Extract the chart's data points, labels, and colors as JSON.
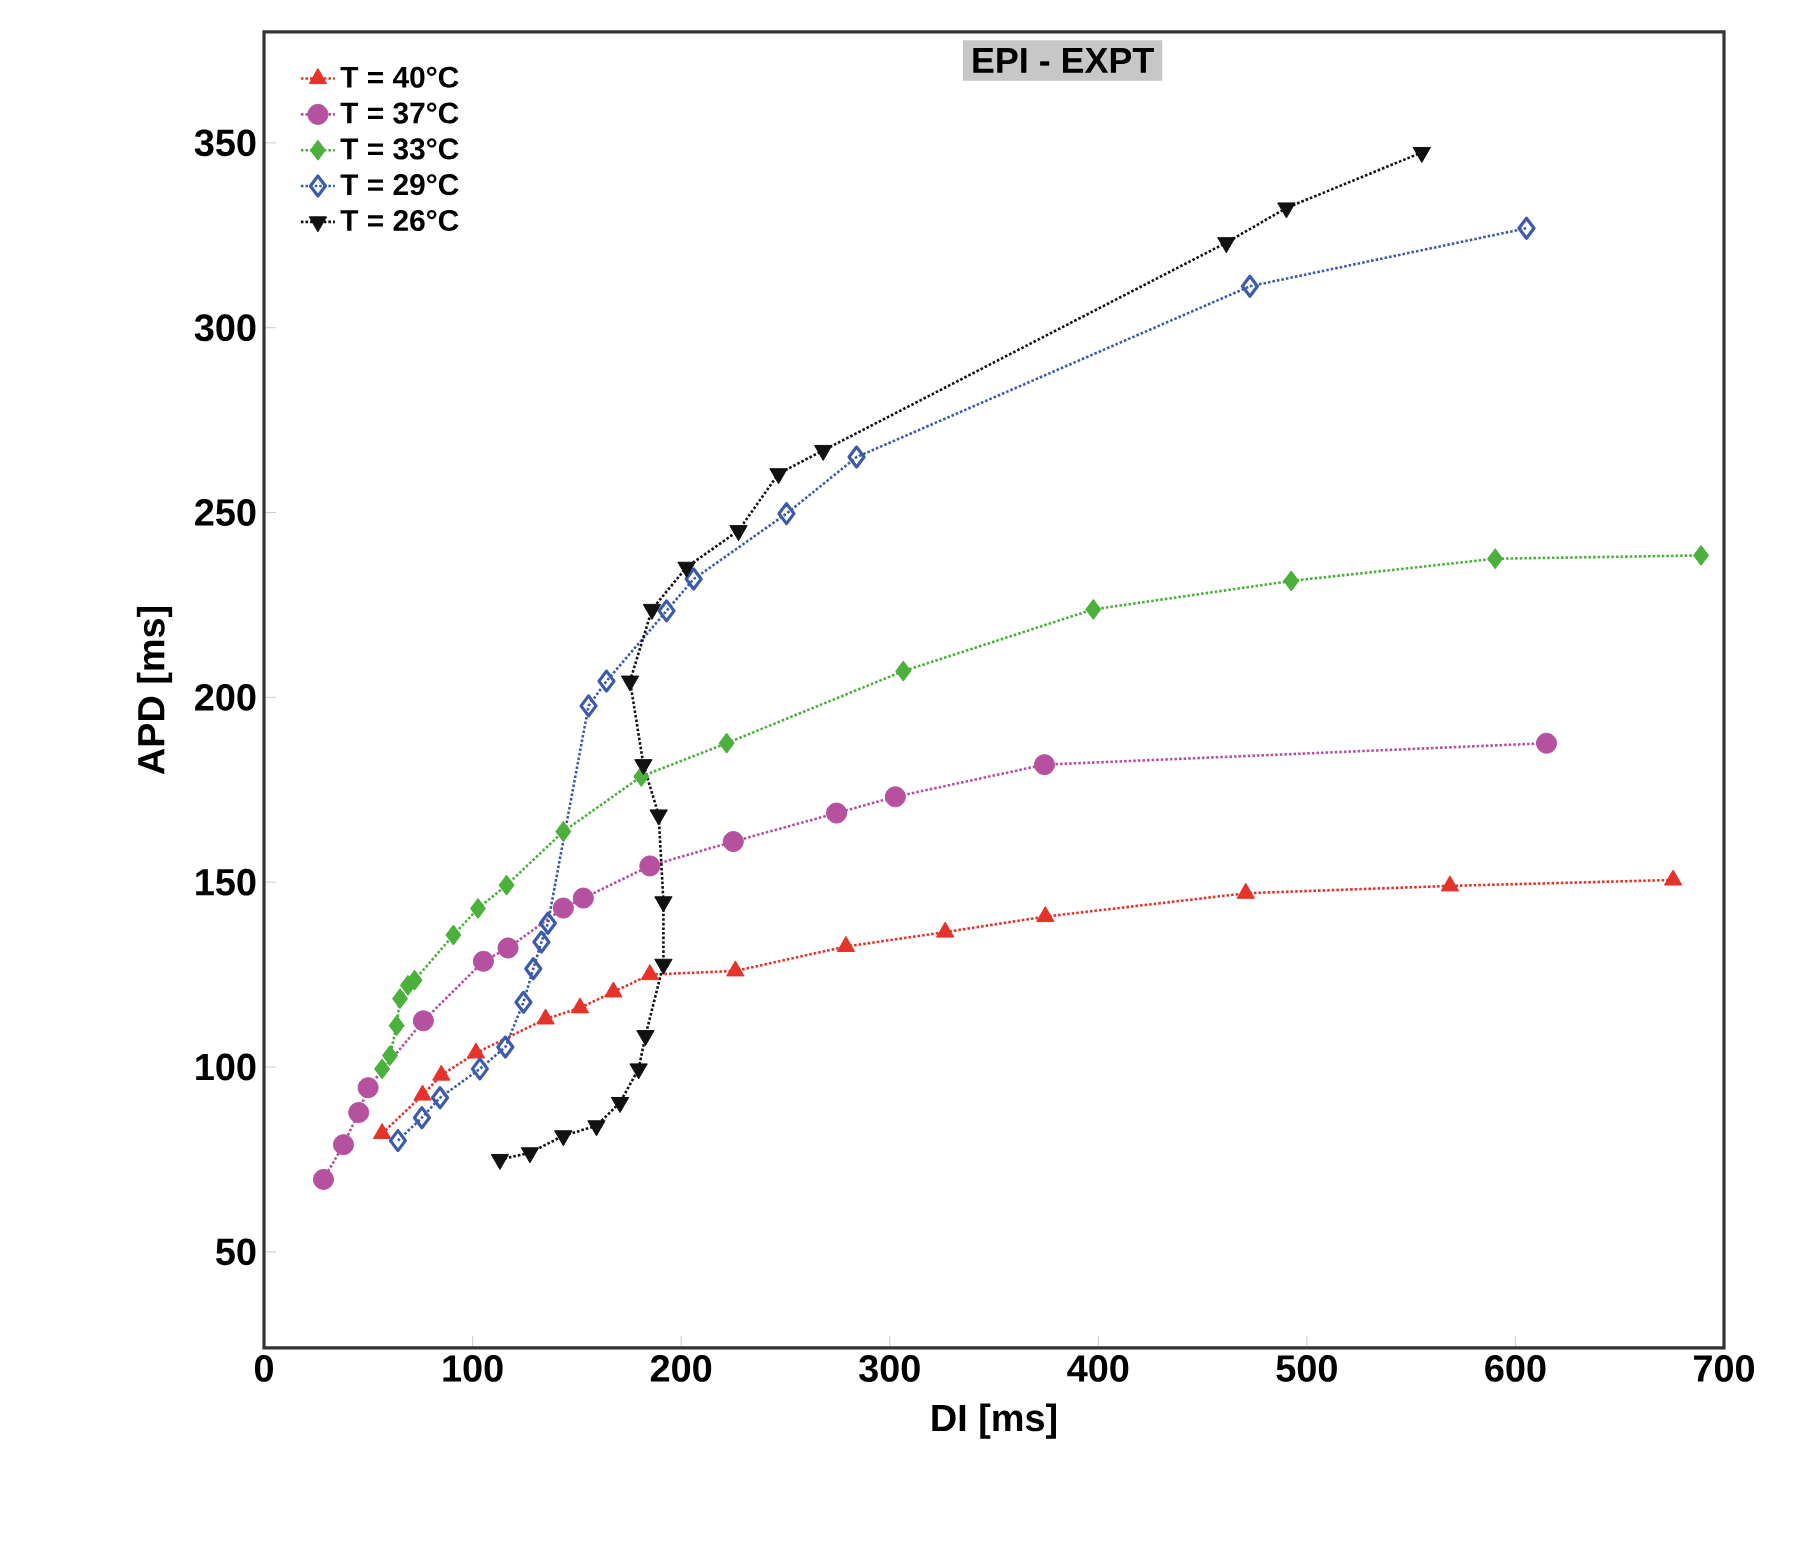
{
  "chart_data": {
    "type": "line",
    "title": "EPI - EXPT",
    "xlabel": "DI [ms]",
    "ylabel": "APD [ms]",
    "xlim": [
      0,
      700
    ],
    "ylim": [
      24,
      380
    ],
    "xticks": [
      0,
      100,
      200,
      300,
      400,
      500,
      600,
      700
    ],
    "yticks": [
      50,
      100,
      150,
      200,
      250,
      300,
      350
    ],
    "grid": false,
    "legend": "top left",
    "line_style": "dotted",
    "series": [
      {
        "name": "T = 40°C",
        "color": "#e5332a",
        "marker": "triangle",
        "x": [
          56.6,
          76,
          85,
          101.6,
          135,
          151.5,
          167.5,
          185,
          226,
          279,
          326.6,
          374.6,
          470.7,
          568.6,
          675.6
        ],
        "values": [
          82,
          92.4,
          97.8,
          103.8,
          113,
          116,
          120.3,
          125,
          126,
          132.6,
          136.5,
          140.7,
          147,
          149,
          150.6
        ]
      },
      {
        "name": "T = 37°C",
        "color": "#b5519f",
        "marker": "circle",
        "x": [
          28.5,
          38.1,
          45.4,
          49.9,
          76.4,
          105.2,
          117,
          143.5,
          153.1,
          185,
          225,
          274.5,
          302.7,
          374.2,
          614.9
        ],
        "values": [
          69.6,
          79,
          87.7,
          94.4,
          112.5,
          128.6,
          132.2,
          143,
          145.7,
          154.4,
          161,
          168.7,
          173.1,
          181.8,
          187.6
        ]
      },
      {
        "name": "T = 33°C",
        "color": "#4cb03c",
        "marker": "diamond",
        "x": [
          56.6,
          60.4,
          63.6,
          65.2,
          69,
          72.2,
          90.8,
          102.6,
          116.3,
          143.5,
          180.9,
          221.8,
          306.5,
          397.6,
          492.5,
          590.3,
          689
        ],
        "values": [
          99.5,
          103.1,
          111.2,
          118.5,
          122.1,
          123.5,
          135.7,
          142.9,
          149.2,
          163.7,
          178.6,
          187.6,
          207.1,
          223.8,
          231.5,
          237.5,
          238.4
        ]
      },
      {
        "name": "T = 29°C",
        "color": "#3d5ba9",
        "marker": "diamond_open",
        "x": [
          64.2,
          75.7,
          84.4,
          103.5,
          115.7,
          124.4,
          129.1,
          133,
          136.1,
          155.6,
          164.2,
          193,
          206,
          250.5,
          284.1,
          472.7,
          605.3
        ],
        "values": [
          80.1,
          86.3,
          91.7,
          99.5,
          105.4,
          117.5,
          126.6,
          133.8,
          138.9,
          197.7,
          204.4,
          223.4,
          232,
          249.7,
          265,
          311.2,
          326.9
        ]
      },
      {
        "name": "T = 26°C",
        "color": "#111111",
        "marker": "triangle_down",
        "x": [
          113.1,
          127.5,
          143.5,
          159.4,
          170.7,
          179.6,
          182.9,
          191.5,
          191.5,
          189.2,
          181.9,
          175.5,
          186,
          202.6,
          227.5,
          246.7,
          268.1,
          461.4,
          490.2,
          555.1
        ],
        "values": [
          75,
          76.8,
          81.4,
          84.1,
          90.4,
          99.5,
          108.5,
          127.8,
          144.7,
          168.2,
          181.8,
          204.4,
          223.8,
          235.2,
          245.1,
          260.5,
          266.8,
          323,
          332.4,
          347.4
        ]
      }
    ]
  }
}
